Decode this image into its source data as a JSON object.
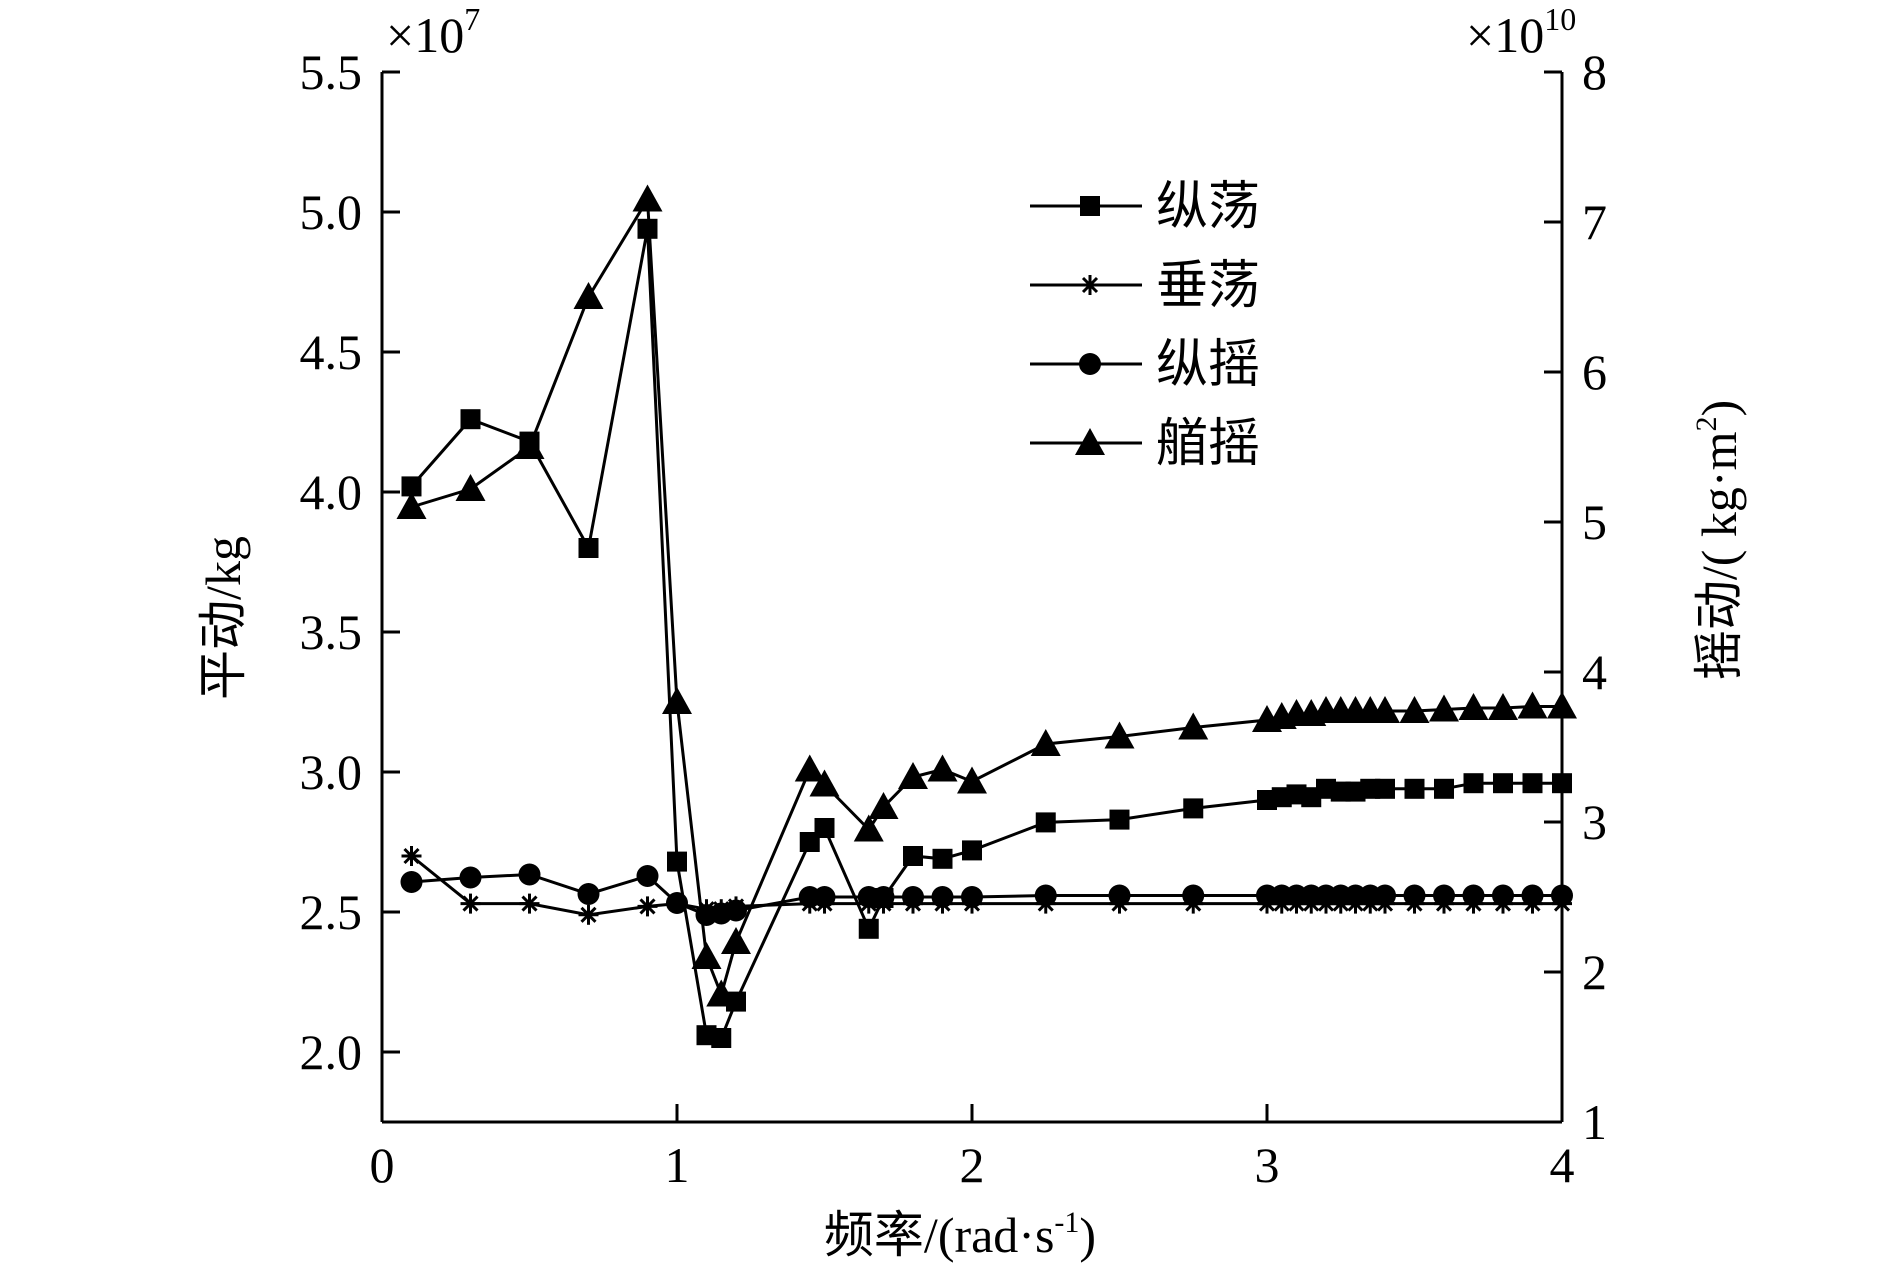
{
  "chart_data": {
    "type": "line",
    "title": "",
    "xlabel": "频率/(rad·s",
    "xlabel_sup": "-1",
    "xlabel_close": ")",
    "ylabel_left": "平动/kg",
    "ylabel_right": "摇动/( kg·m",
    "ylabel_right_sup": "2",
    "ylabel_right_close": ")",
    "left_multiplier": "×10",
    "left_multiplier_exp": "7",
    "right_multiplier": "×10",
    "right_multiplier_exp": "10",
    "xlim": [
      0,
      4
    ],
    "ylim_left": [
      1.75,
      5.5
    ],
    "ylim_right": [
      1,
      8
    ],
    "x_ticks": [
      0,
      1,
      2,
      3,
      4
    ],
    "x_tick_labels": [
      "0",
      "1",
      "2",
      "3",
      "4"
    ],
    "y_left_ticks": [
      2.0,
      2.5,
      3.0,
      3.5,
      4.0,
      4.5,
      5.0,
      5.5
    ],
    "y_left_tick_labels": [
      "2.0",
      "2.5",
      "3.0",
      "3.5",
      "4.0",
      "4.5",
      "5.0",
      "5.5"
    ],
    "y_right_ticks": [
      1,
      2,
      3,
      4,
      5,
      6,
      7,
      8
    ],
    "y_right_tick_labels": [
      "1",
      "2",
      "3",
      "4",
      "5",
      "6",
      "7",
      "8"
    ],
    "legend_position": "upper-center",
    "grid": false,
    "series": [
      {
        "name": "纵荡",
        "axis": "left",
        "marker": "square",
        "x": [
          0.1,
          0.3,
          0.5,
          0.7,
          0.9,
          1.0,
          1.1,
          1.15,
          1.2,
          1.45,
          1.5,
          1.65,
          1.7,
          1.8,
          1.9,
          2.0,
          2.25,
          2.5,
          2.75,
          3.0,
          3.05,
          3.1,
          3.15,
          3.2,
          3.25,
          3.3,
          3.35,
          3.4,
          3.5,
          3.6,
          3.7,
          3.8,
          3.9,
          4.0
        ],
        "y": [
          4.02,
          4.26,
          4.18,
          3.8,
          4.94,
          2.68,
          2.06,
          2.05,
          2.18,
          2.75,
          2.8,
          2.44,
          2.55,
          2.7,
          2.69,
          2.72,
          2.82,
          2.83,
          2.87,
          2.9,
          2.91,
          2.92,
          2.91,
          2.94,
          2.93,
          2.93,
          2.94,
          2.94,
          2.94,
          2.94,
          2.96,
          2.96,
          2.96,
          2.96
        ]
      },
      {
        "name": "垂荡",
        "axis": "left",
        "marker": "asterisk",
        "x": [
          0.1,
          0.3,
          0.5,
          0.7,
          0.9,
          1.0,
          1.1,
          1.15,
          1.2,
          1.45,
          1.5,
          1.65,
          1.7,
          1.8,
          1.9,
          2.0,
          2.25,
          2.5,
          2.75,
          3.0,
          3.05,
          3.1,
          3.15,
          3.2,
          3.25,
          3.3,
          3.35,
          3.4,
          3.5,
          3.6,
          3.7,
          3.8,
          3.9,
          4.0
        ],
        "y": [
          2.7,
          2.53,
          2.53,
          2.49,
          2.52,
          2.53,
          2.51,
          2.51,
          2.52,
          2.53,
          2.53,
          2.53,
          2.53,
          2.53,
          2.53,
          2.53,
          2.53,
          2.53,
          2.53,
          2.53,
          2.53,
          2.53,
          2.53,
          2.53,
          2.53,
          2.53,
          2.53,
          2.53,
          2.53,
          2.53,
          2.53,
          2.53,
          2.53,
          2.53
        ]
      },
      {
        "name": "纵摇",
        "axis": "right",
        "marker": "circle",
        "x": [
          0.1,
          0.3,
          0.5,
          0.7,
          0.9,
          1.0,
          1.1,
          1.15,
          1.2,
          1.45,
          1.5,
          1.65,
          1.7,
          1.8,
          1.9,
          2.0,
          2.25,
          2.5,
          2.75,
          3.0,
          3.05,
          3.1,
          3.15,
          3.2,
          3.25,
          3.3,
          3.35,
          3.4,
          3.5,
          3.6,
          3.7,
          3.8,
          3.9,
          4.0
        ],
        "y": [
          2.6,
          2.63,
          2.65,
          2.52,
          2.64,
          2.46,
          2.38,
          2.39,
          2.41,
          2.5,
          2.5,
          2.5,
          2.5,
          2.5,
          2.5,
          2.5,
          2.51,
          2.51,
          2.51,
          2.51,
          2.51,
          2.51,
          2.51,
          2.51,
          2.51,
          2.51,
          2.51,
          2.51,
          2.51,
          2.51,
          2.51,
          2.51,
          2.51,
          2.51
        ]
      },
      {
        "name": "艏摇",
        "axis": "right",
        "marker": "triangle",
        "x": [
          0.1,
          0.3,
          0.5,
          0.7,
          0.9,
          1.0,
          1.1,
          1.15,
          1.2,
          1.45,
          1.5,
          1.65,
          1.7,
          1.8,
          1.9,
          2.0,
          2.25,
          2.5,
          2.75,
          3.0,
          3.05,
          3.1,
          3.15,
          3.2,
          3.25,
          3.3,
          3.35,
          3.4,
          3.5,
          3.6,
          3.7,
          3.8,
          3.9,
          4.0
        ],
        "y": [
          5.1,
          5.22,
          5.5,
          6.5,
          7.15,
          3.8,
          2.1,
          1.85,
          2.2,
          3.35,
          3.25,
          2.95,
          3.1,
          3.3,
          3.35,
          3.27,
          3.52,
          3.57,
          3.63,
          3.68,
          3.7,
          3.72,
          3.72,
          3.74,
          3.74,
          3.74,
          3.74,
          3.74,
          3.74,
          3.75,
          3.76,
          3.76,
          3.77,
          3.77
        ]
      }
    ]
  }
}
